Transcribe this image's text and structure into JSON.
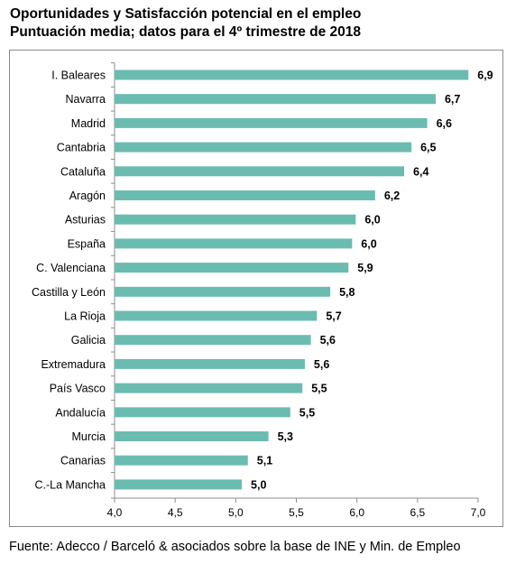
{
  "title": "Oportunidades y Satisfacción potencial en el empleo",
  "subtitle": "Puntuación media; datos para el 4º trimestre de 2018",
  "source": "Fuente: Adecco / Barceló & asociados sobre la base de INE y Min. de Empleo",
  "chart_data": {
    "type": "bar",
    "orientation": "horizontal",
    "title": "Oportunidades y Satisfacción potencial en el empleo",
    "subtitle": "Puntuación media; datos para el 4º trimestre de 2018",
    "categories": [
      "I. Baleares",
      "Navarra",
      "Madrid",
      "Cantabria",
      "Cataluña",
      "Aragón",
      "Asturias",
      "España",
      "C. Valenciana",
      "Castilla y León",
      "La Rioja",
      "Galicia",
      "Extremadura",
      "País Vasco",
      "Andalucía",
      "Murcia",
      "Canarias",
      "C.-La Mancha"
    ],
    "values": [
      6.92,
      6.65,
      6.58,
      6.45,
      6.39,
      6.15,
      5.99,
      5.96,
      5.93,
      5.78,
      5.67,
      5.62,
      5.57,
      5.55,
      5.45,
      5.27,
      5.1,
      5.05
    ],
    "value_labels": [
      "6,9",
      "6,7",
      "6,6",
      "6,5",
      "6,4",
      "6,2",
      "6,0",
      "6,0",
      "5,9",
      "5,8",
      "5,7",
      "5,6",
      "5,6",
      "5,5",
      "5,5",
      "5,3",
      "5,1",
      "5,0"
    ],
    "xlim": [
      4.0,
      7.0
    ],
    "x_ticks": [
      "4,0",
      "4,5",
      "5,0",
      "5,5",
      "6,0",
      "6,5",
      "7,0"
    ],
    "grid": false,
    "bar_color": "#6bbcb0"
  }
}
